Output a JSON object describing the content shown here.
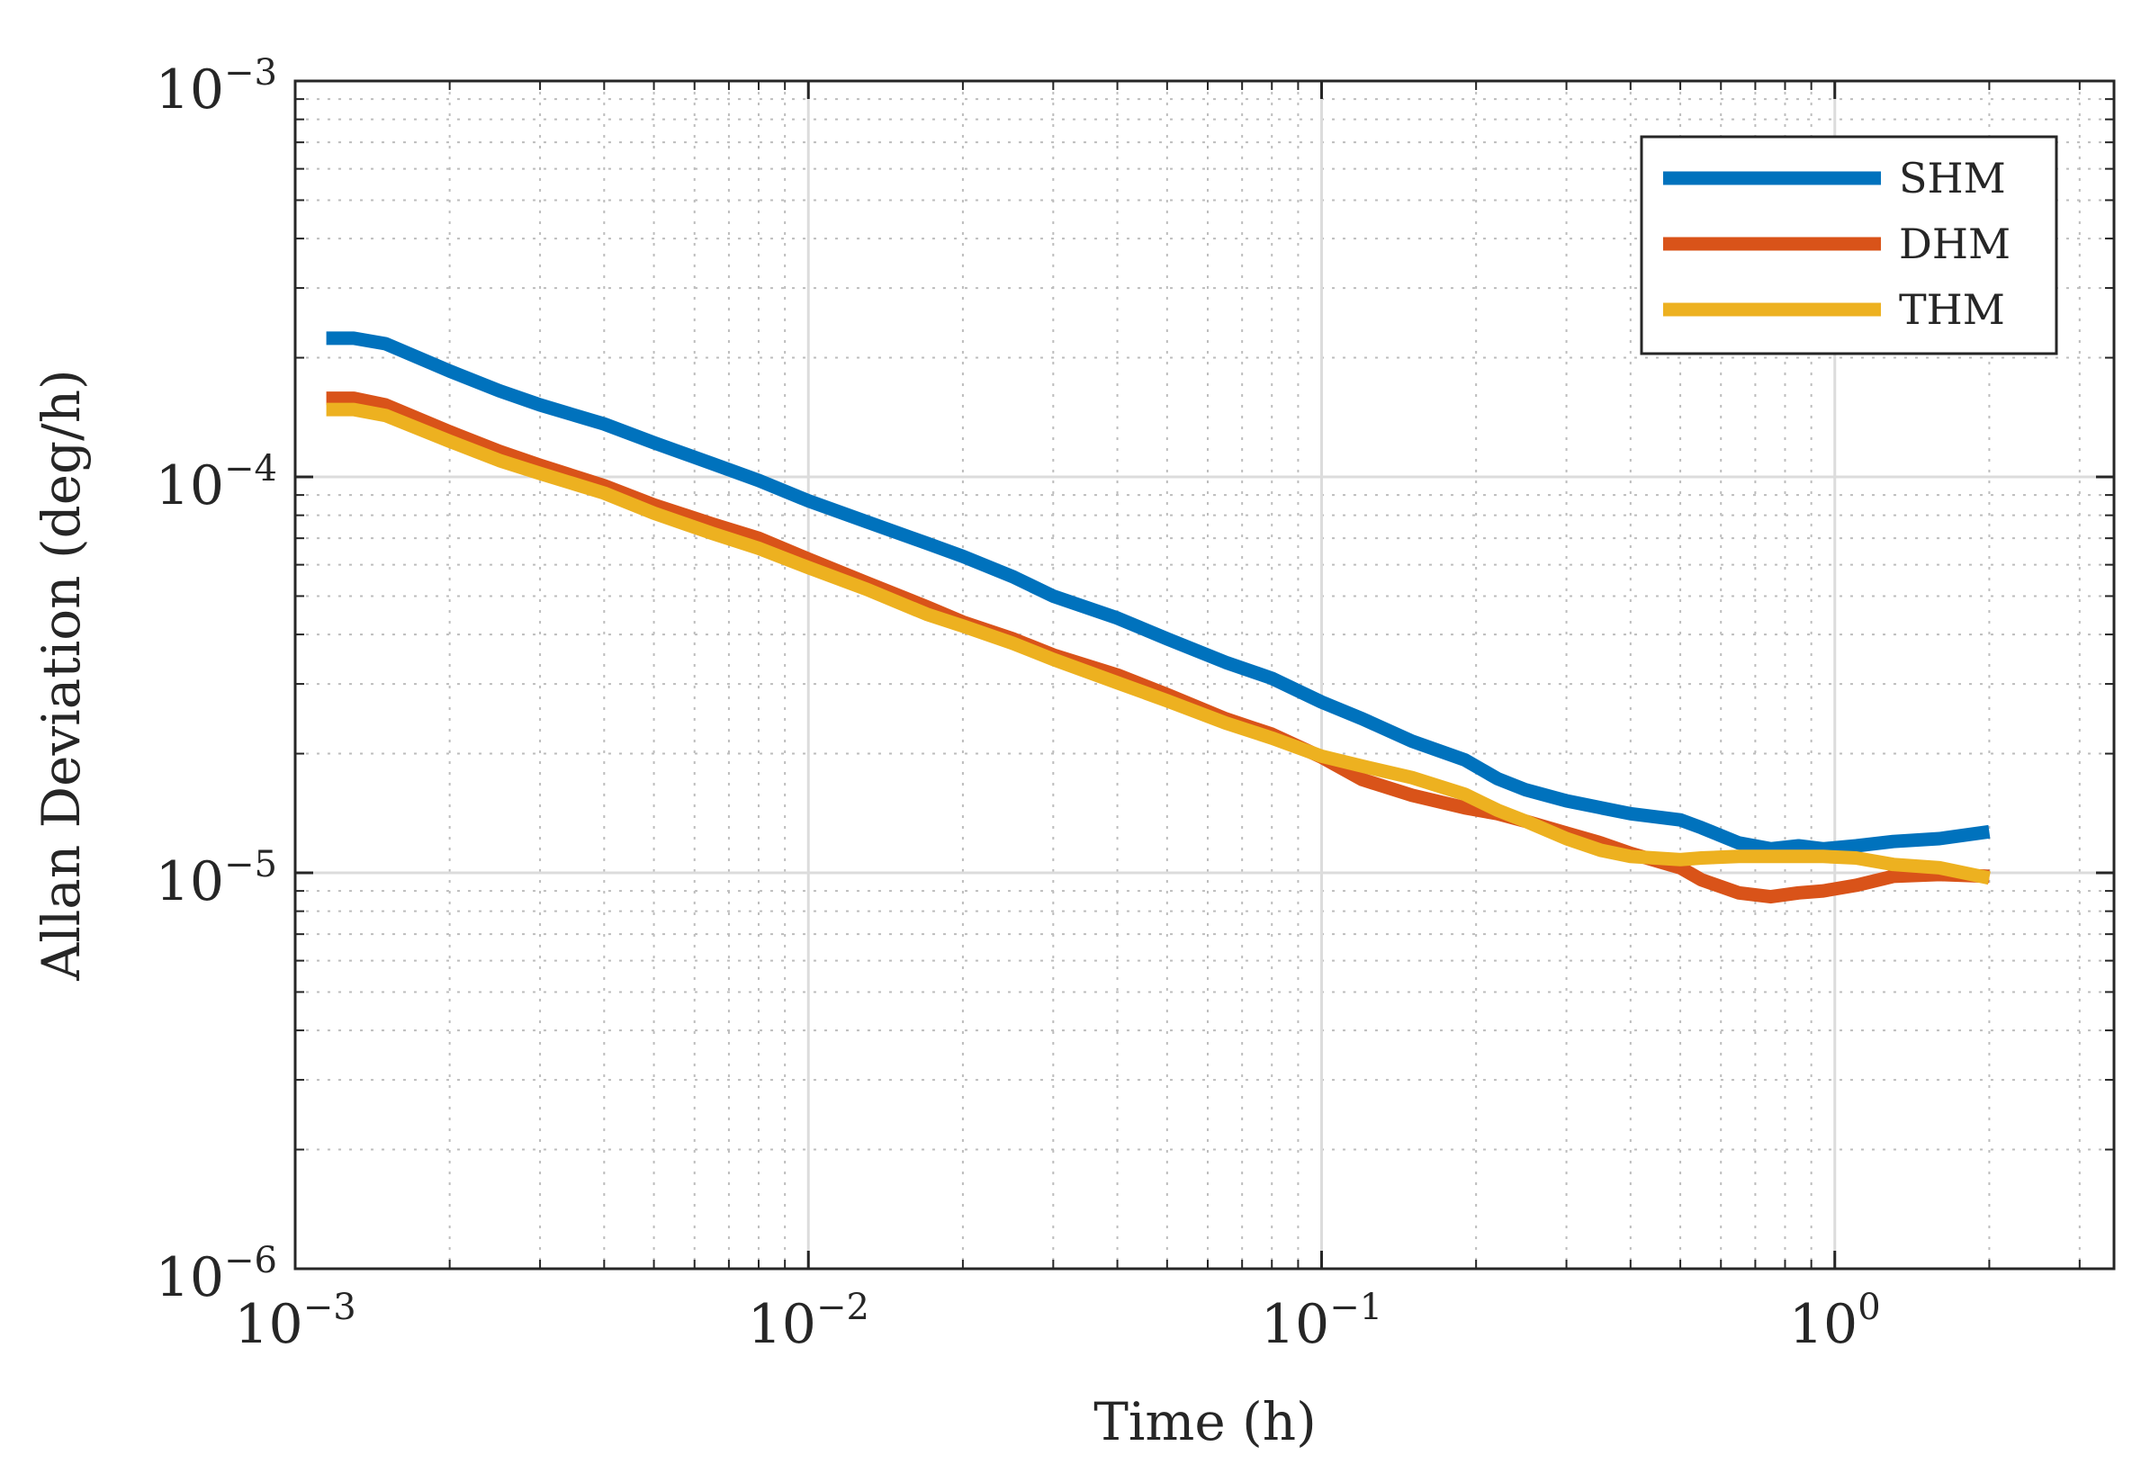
{
  "chart_data": {
    "type": "line",
    "title": "",
    "xlabel": "Time (h)",
    "ylabel": "Allan Deviation (deg/h)",
    "xscale": "log",
    "yscale": "log",
    "xlim": [
      0.001,
      3.5
    ],
    "ylim": [
      1e-06,
      0.001
    ],
    "grid": true,
    "legend_position": "top-right",
    "xticks": [
      {
        "value": 0.001,
        "base": "10",
        "exp": "−3"
      },
      {
        "value": 0.01,
        "base": "10",
        "exp": "−2"
      },
      {
        "value": 0.1,
        "base": "10",
        "exp": "−1"
      },
      {
        "value": 1,
        "base": "10",
        "exp": "0"
      }
    ],
    "yticks": [
      {
        "value": 1e-06,
        "base": "10",
        "exp": "−6"
      },
      {
        "value": 1e-05,
        "base": "10",
        "exp": "−5"
      },
      {
        "value": 0.0001,
        "base": "10",
        "exp": "−4"
      },
      {
        "value": 0.001,
        "base": "10",
        "exp": "−3"
      }
    ],
    "series": [
      {
        "name": "SHM",
        "color": "#0072BD",
        "x": [
          0.00115,
          0.0013,
          0.0015,
          0.002,
          0.0025,
          0.003,
          0.004,
          0.005,
          0.0065,
          0.008,
          0.01,
          0.013,
          0.017,
          0.02,
          0.025,
          0.03,
          0.04,
          0.05,
          0.065,
          0.08,
          0.1,
          0.12,
          0.15,
          0.19,
          0.22,
          0.25,
          0.3,
          0.35,
          0.4,
          0.5,
          0.55,
          0.65,
          0.75,
          0.85,
          0.95,
          1.1,
          1.3,
          1.6,
          2.0
        ],
        "y": [
          0.000224,
          0.000224,
          0.000217,
          0.000185,
          0.000165,
          0.000152,
          0.000136,
          0.000122,
          0.000108,
          9.8e-05,
          8.7e-05,
          7.7e-05,
          6.8e-05,
          6.3e-05,
          5.6e-05,
          5e-05,
          4.4e-05,
          3.9e-05,
          3.4e-05,
          3.1e-05,
          2.7e-05,
          2.45e-05,
          2.15e-05,
          1.93e-05,
          1.73e-05,
          1.62e-05,
          1.52e-05,
          1.46e-05,
          1.41e-05,
          1.36e-05,
          1.3e-05,
          1.19e-05,
          1.15e-05,
          1.17e-05,
          1.15e-05,
          1.17e-05,
          1.2e-05,
          1.22e-05,
          1.27e-05
        ]
      },
      {
        "name": "DHM",
        "color": "#D95319",
        "x": [
          0.00115,
          0.0013,
          0.0015,
          0.002,
          0.0025,
          0.003,
          0.004,
          0.005,
          0.0065,
          0.008,
          0.01,
          0.013,
          0.017,
          0.02,
          0.025,
          0.03,
          0.04,
          0.05,
          0.065,
          0.08,
          0.1,
          0.12,
          0.15,
          0.19,
          0.22,
          0.25,
          0.3,
          0.35,
          0.4,
          0.5,
          0.55,
          0.65,
          0.75,
          0.85,
          0.95,
          1.1,
          1.3,
          1.6,
          2.0
        ],
        "y": [
          0.000158,
          0.000158,
          0.000152,
          0.00013,
          0.000116,
          0.000107,
          9.5e-05,
          8.5e-05,
          7.6e-05,
          7e-05,
          6.2e-05,
          5.4e-05,
          4.7e-05,
          4.3e-05,
          3.9e-05,
          3.55e-05,
          3.16e-05,
          2.82e-05,
          2.45e-05,
          2.24e-05,
          1.96e-05,
          1.72e-05,
          1.57e-05,
          1.46e-05,
          1.41e-05,
          1.35e-05,
          1.26e-05,
          1.19e-05,
          1.12e-05,
          1.03e-05,
          9.6e-06,
          8.9e-06,
          8.7e-06,
          8.9e-06,
          9e-06,
          9.3e-06,
          9.8e-06,
          9.9e-06,
          9.8e-06
        ]
      },
      {
        "name": "THM",
        "color": "#EDB120",
        "x": [
          0.00115,
          0.0013,
          0.0015,
          0.002,
          0.0025,
          0.003,
          0.004,
          0.005,
          0.0065,
          0.008,
          0.01,
          0.013,
          0.017,
          0.02,
          0.025,
          0.03,
          0.04,
          0.05,
          0.065,
          0.08,
          0.1,
          0.12,
          0.15,
          0.19,
          0.22,
          0.25,
          0.3,
          0.35,
          0.4,
          0.5,
          0.55,
          0.65,
          0.75,
          0.85,
          0.95,
          1.1,
          1.3,
          1.6,
          2.0
        ],
        "y": [
          0.000148,
          0.000148,
          0.000143,
          0.000123,
          0.00011,
          0.000102,
          9.1e-05,
          8.1e-05,
          7.2e-05,
          6.6e-05,
          5.9e-05,
          5.2e-05,
          4.5e-05,
          4.2e-05,
          3.8e-05,
          3.46e-05,
          3.02e-05,
          2.72e-05,
          2.39e-05,
          2.19e-05,
          1.97e-05,
          1.86e-05,
          1.74e-05,
          1.58e-05,
          1.44e-05,
          1.35e-05,
          1.22e-05,
          1.14e-05,
          1.1e-05,
          1.08e-05,
          1.09e-05,
          1.1e-05,
          1.1e-05,
          1.1e-05,
          1.1e-05,
          1.09e-05,
          1.05e-05,
          1.03e-05,
          9.7e-06
        ]
      }
    ]
  }
}
